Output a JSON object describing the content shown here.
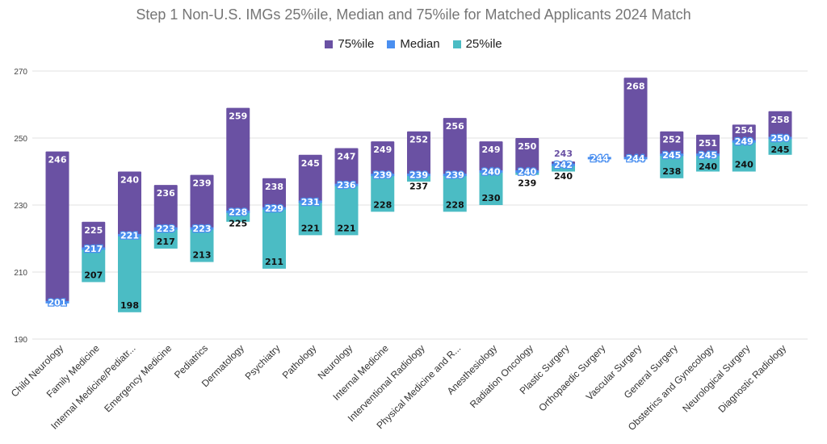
{
  "chart_data": {
    "type": "bar",
    "subtype": "floating-stacked-range",
    "title": "Step 1 Non-U.S. IMGs 25%ile, Median and 75%ile for Matched Applicants 2024 Match",
    "xlabel": "",
    "ylabel": "",
    "ylim": [
      190,
      270
    ],
    "yticks": [
      190,
      210,
      230,
      250,
      270
    ],
    "grid": true,
    "legend_position": "top",
    "colors": {
      "p75": "#6a51a3",
      "median": "#4a8ff0",
      "p25": "#4bbcc4"
    },
    "categories": [
      "Child Neurology",
      "Family Medicine",
      "Internal Medicine/Pediatr...",
      "Emergency Medicine",
      "Pediatrics",
      "Dermatology",
      "Psychiatry",
      "Pathology",
      "Neurology",
      "Internal Medicine",
      "Interventional Radiology",
      "Physical Medicine and R...",
      "Anesthesiology",
      "Radiation Oncology",
      "Plastic Surgery",
      "Orthopaedic Surgery",
      "Vascular Surgery",
      "General Surgery",
      "Obstetrics and Gynecology",
      "Neurological Surgery",
      "Diagnostic Radiology"
    ],
    "series": [
      {
        "name": "75%ile",
        "values": [
          246,
          225,
          240,
          236,
          239,
          259,
          238,
          245,
          247,
          249,
          252,
          256,
          249,
          250,
          243,
          244,
          268,
          252,
          251,
          254,
          258
        ]
      },
      {
        "name": "Median",
        "values": [
          201,
          217,
          221,
          223,
          223,
          228,
          229,
          231,
          236,
          239,
          239,
          239,
          240,
          240,
          242,
          244,
          244,
          245,
          245,
          249,
          250
        ]
      },
      {
        "name": "25%ile",
        "values": [
          201,
          207,
          198,
          217,
          213,
          225,
          211,
          221,
          221,
          228,
          237,
          228,
          230,
          239,
          240,
          244,
          244,
          238,
          240,
          240,
          245
        ]
      }
    ]
  }
}
